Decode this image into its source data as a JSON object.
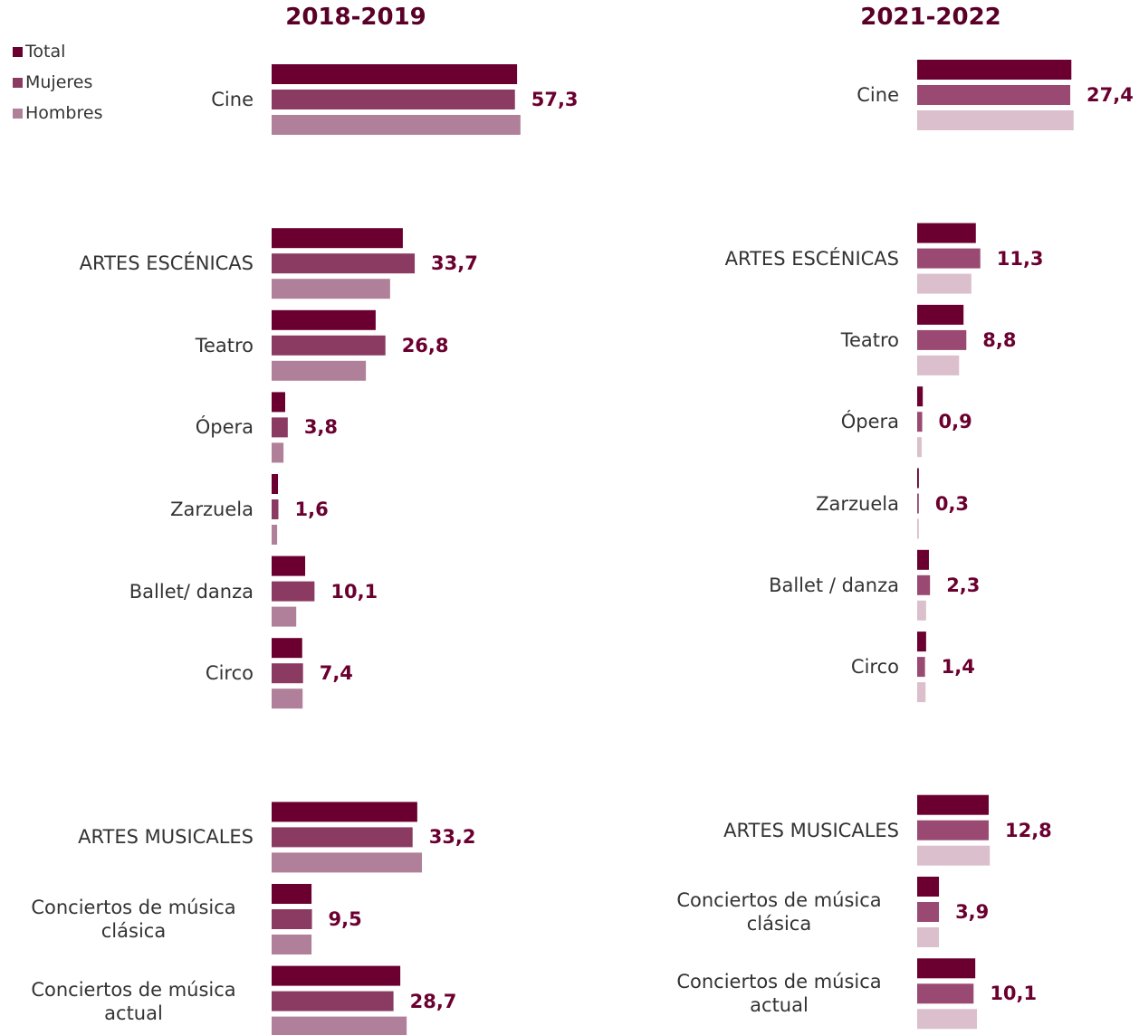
{
  "chart_data": [
    {
      "type": "bar",
      "orientation": "horizontal",
      "title": "2018-2019",
      "categories": [
        "Cine",
        "ARTES ESCÉNICAS",
        "Teatro",
        "Ópera",
        "Zarzuela",
        "Ballet/ danza",
        "Circo",
        "ARTES MUSICALES",
        "Conciertos de música clásica",
        "Conciertos de música actual"
      ],
      "series": [
        {
          "name": "Total",
          "color": "#6b0030",
          "values": [
            57.8,
            30.9,
            24.5,
            3.2,
            1.5,
            7.9,
            7.2,
            34.3,
            9.4,
            30.3
          ]
        },
        {
          "name": "Mujeres",
          "color": "#8b3a62",
          "values": [
            57.3,
            33.7,
            26.8,
            3.8,
            1.6,
            10.1,
            7.4,
            33.2,
            9.5,
            28.7
          ],
          "value_labels": [
            "57,3",
            "33,7",
            "26,8",
            "3,8",
            "1,6",
            "10,1",
            "7,4",
            "33,2",
            "9,5",
            "28,7"
          ]
        },
        {
          "name": "Hombres",
          "color": "#b07f99",
          "values": [
            58.6,
            27.9,
            22.2,
            2.8,
            1.3,
            5.8,
            7.3,
            35.4,
            9.4,
            31.8
          ]
        }
      ]
    },
    {
      "type": "bar",
      "orientation": "horizontal",
      "title": "2021-2022",
      "categories": [
        "Cine",
        "ARTES ESCÉNICAS",
        "Teatro",
        "Ópera",
        "Zarzuela",
        "Ballet / danza",
        "Circo",
        "ARTES MUSICALES",
        "Conciertos de música clásica",
        "Conciertos de música actual"
      ],
      "series": [
        {
          "color": "#6b0030",
          "values": [
            27.6,
            10.5,
            8.3,
            1.0,
            0.3,
            2.1,
            1.6,
            12.8,
            3.9,
            10.4
          ]
        },
        {
          "color": "#9a4a72",
          "values": [
            27.4,
            11.3,
            8.8,
            0.9,
            0.3,
            2.3,
            1.4,
            12.8,
            3.9,
            10.1
          ],
          "value_labels": [
            "27,4",
            "11,3",
            "8,8",
            "0,9",
            "0,3",
            "2,3",
            "1,4",
            "12,8",
            "3,9",
            "10,1"
          ]
        },
        {
          "color": "#dbbfcc",
          "values": [
            28.0,
            9.7,
            7.5,
            0.8,
            0.3,
            1.6,
            1.5,
            13.0,
            3.9,
            10.7
          ]
        }
      ]
    }
  ]
}
